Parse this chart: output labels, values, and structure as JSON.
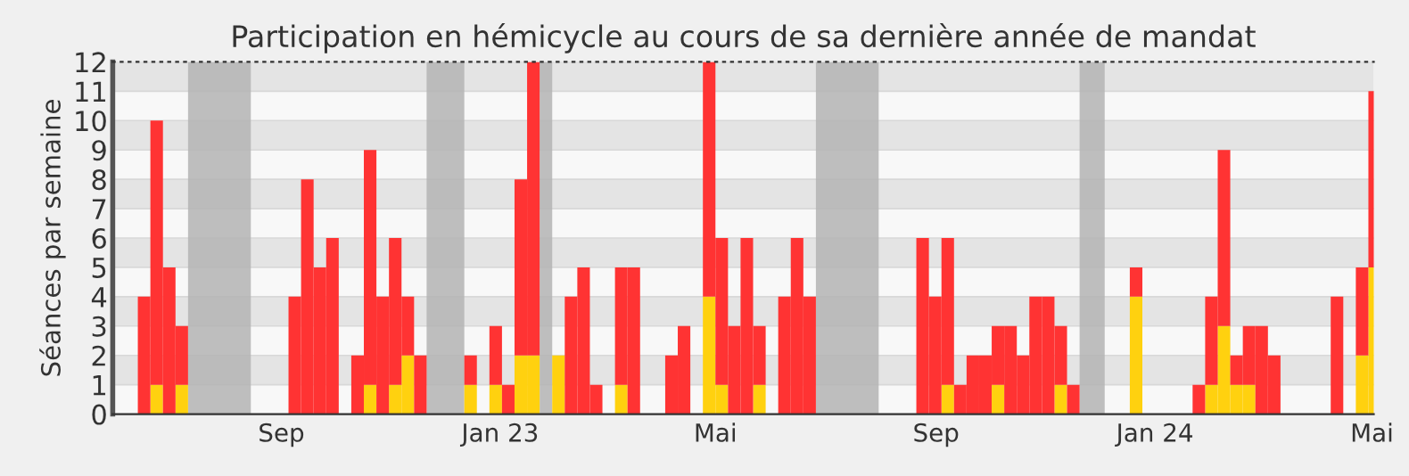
{
  "chart_data": {
    "type": "bar",
    "stacked": true,
    "title": "Participation en hémicycle au cours de sa dernière année de mandat",
    "ylabel": "Séances par semaine",
    "x": [
      "2022-05-30",
      "2022-06-06",
      "2022-06-13",
      "2022-06-20",
      "2022-06-27",
      "2022-07-04",
      "2022-07-11",
      "2022-07-18",
      "2022-07-25",
      "2022-08-01",
      "2022-08-08",
      "2022-08-15",
      "2022-08-22",
      "2022-08-29",
      "2022-09-05",
      "2022-09-12",
      "2022-09-19",
      "2022-09-26",
      "2022-10-03",
      "2022-10-10",
      "2022-10-17",
      "2022-10-24",
      "2022-10-31",
      "2022-11-07",
      "2022-11-14",
      "2022-11-21",
      "2022-11-28",
      "2022-12-05",
      "2022-12-12",
      "2022-12-19",
      "2022-12-26",
      "2023-01-02",
      "2023-01-09",
      "2023-01-16",
      "2023-01-23",
      "2023-01-30",
      "2023-02-06",
      "2023-02-13",
      "2023-02-20",
      "2023-02-27",
      "2023-03-06",
      "2023-03-13",
      "2023-03-20",
      "2023-03-27",
      "2023-04-03",
      "2023-04-10",
      "2023-04-17",
      "2023-04-24",
      "2023-05-01",
      "2023-05-08",
      "2023-05-15",
      "2023-05-22",
      "2023-05-29",
      "2023-06-05",
      "2023-06-12",
      "2023-06-19",
      "2023-06-26",
      "2023-07-03",
      "2023-07-10",
      "2023-07-17",
      "2023-07-24",
      "2023-07-31",
      "2023-08-07",
      "2023-08-14",
      "2023-08-21",
      "2023-08-28",
      "2023-09-04",
      "2023-09-11",
      "2023-09-18",
      "2023-09-25",
      "2023-10-02",
      "2023-10-09",
      "2023-10-16",
      "2023-10-23",
      "2023-10-30",
      "2023-11-06",
      "2023-11-13",
      "2023-11-20",
      "2023-11-27",
      "2023-12-04",
      "2023-12-11",
      "2023-12-18",
      "2023-12-25",
      "2024-01-01",
      "2024-01-08",
      "2024-01-15",
      "2024-01-22",
      "2024-01-29",
      "2024-02-05",
      "2024-02-12",
      "2024-02-19",
      "2024-02-26",
      "2024-03-04",
      "2024-03-11",
      "2024-03-18",
      "2024-03-25",
      "2024-04-01",
      "2024-04-08",
      "2024-04-15",
      "2024-04-22",
      "2024-04-29"
    ],
    "series": [
      {
        "color": "#ffd10f",
        "values": [
          0,
          0,
          0,
          1,
          0,
          1,
          0,
          0,
          0,
          0,
          0,
          0,
          0,
          0,
          0,
          0,
          0,
          0,
          0,
          0,
          1,
          0,
          1,
          2,
          0,
          0,
          0,
          0,
          1,
          0,
          1,
          0,
          2,
          2,
          0,
          2,
          0,
          0,
          0,
          0,
          1,
          0,
          0,
          0,
          0,
          0,
          0,
          4,
          1,
          0,
          0,
          1,
          0,
          0,
          0,
          0,
          0,
          0,
          0,
          0,
          0,
          0,
          0,
          0,
          0,
          0,
          1,
          0,
          0,
          0,
          1,
          0,
          0,
          0,
          0,
          1,
          0,
          0,
          0,
          0,
          0,
          4,
          0,
          0,
          0,
          0,
          0,
          1,
          3,
          1,
          1,
          0,
          0,
          0,
          0,
          0,
          0,
          0,
          0,
          2,
          5
        ]
      },
      {
        "color": "#ff3333",
        "values": [
          0,
          0,
          4,
          9,
          5,
          2,
          0,
          0,
          0,
          0,
          0,
          0,
          0,
          0,
          4,
          8,
          5,
          6,
          0,
          2,
          8,
          4,
          5,
          2,
          2,
          0,
          0,
          0,
          1,
          0,
          2,
          1,
          6,
          10,
          0,
          0,
          4,
          5,
          1,
          0,
          4,
          5,
          0,
          0,
          2,
          3,
          0,
          8,
          5,
          3,
          6,
          2,
          0,
          4,
          6,
          4,
          0,
          0,
          0,
          0,
          0,
          0,
          0,
          0,
          6,
          4,
          5,
          1,
          2,
          2,
          2,
          3,
          2,
          4,
          4,
          2,
          1,
          0,
          0,
          0,
          0,
          1,
          0,
          0,
          0,
          0,
          1,
          3,
          6,
          1,
          2,
          3,
          2,
          0,
          0,
          0,
          0,
          4,
          0,
          3,
          6
        ]
      }
    ],
    "bands": [
      {
        "axis": "x",
        "from": "2022-07-11",
        "to": "2022-08-15",
        "color": "#b4b4b4"
      },
      {
        "axis": "x",
        "from": "2022-11-21",
        "to": "2022-12-12",
        "color": "#b4b4b4"
      },
      {
        "axis": "x",
        "from": "2023-01-23",
        "to": "2023-01-30",
        "color": "#b4b4b4"
      },
      {
        "axis": "x",
        "from": "2023-06-26",
        "to": "2023-07-31",
        "color": "#b4b4b4"
      },
      {
        "axis": "x",
        "from": "2023-11-20",
        "to": "2023-12-04",
        "color": "#b4b4b4"
      }
    ],
    "xlim": [
      "2022-05-30",
      "2024-05-02"
    ],
    "xticks": [
      {
        "value": "2022-09-01",
        "label": "Sep"
      },
      {
        "value": "2023-01-01",
        "label": "Jan 23"
      },
      {
        "value": "2023-05-01",
        "label": "Mai"
      },
      {
        "value": "2023-09-01",
        "label": "Sep"
      },
      {
        "value": "2024-01-01",
        "label": "Jan 24"
      },
      {
        "value": "2024-05-01",
        "label": "Mai"
      }
    ],
    "ylim": [
      0,
      12
    ],
    "yticks": [
      0,
      1,
      2,
      3,
      4,
      5,
      6,
      7,
      8,
      9,
      10,
      11,
      12
    ],
    "grid": "y"
  }
}
